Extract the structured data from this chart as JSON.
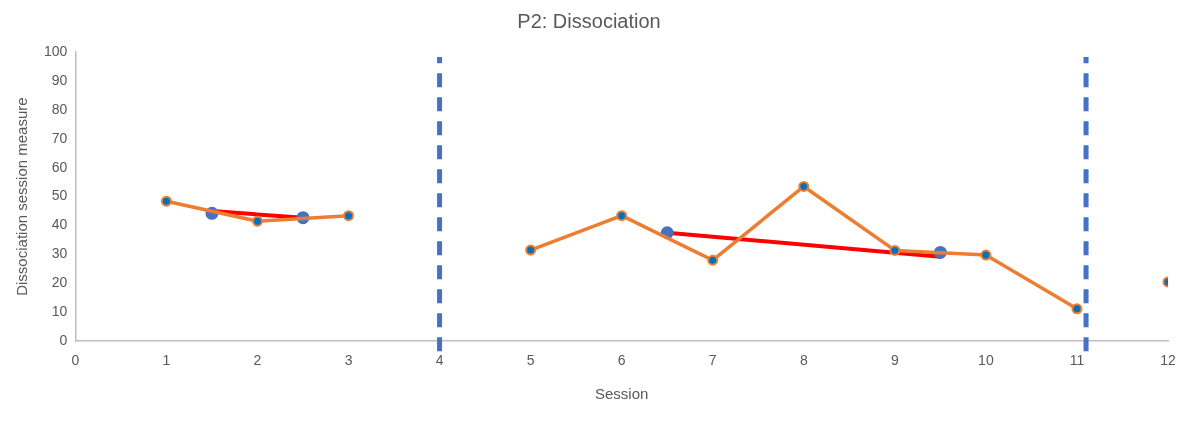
{
  "chart_data": {
    "type": "line",
    "title": "P2: Dissociation",
    "xlabel": "Session",
    "ylabel": "Dissociation session measure",
    "xlim": [
      0,
      12
    ],
    "xticks": [
      0,
      1,
      2,
      3,
      4,
      5,
      6,
      7,
      8,
      9,
      10,
      11,
      12
    ],
    "ylim": [
      0,
      100
    ],
    "yticks": [
      0,
      10,
      20,
      30,
      40,
      50,
      60,
      70,
      80,
      90,
      100
    ],
    "grid": false,
    "legend": false,
    "marker": "circle",
    "series": [
      {
        "type": "line",
        "color": "#ed7d31",
        "x": [
          1,
          2,
          3,
          4,
          5,
          6,
          7,
          8,
          9,
          10,
          11
        ],
        "values": [
          48.4,
          41.5,
          43.4,
          null,
          31.5,
          43.4,
          28,
          53.5,
          31.4,
          29.8,
          11.2
        ]
      },
      {
        "type": "scatter",
        "color": "#ed7d31",
        "x": [
          12
        ],
        "values": [
          20.5
        ]
      },
      {
        "type": "scatter",
        "color": "#4472c4",
        "x": [
          1.5,
          2.5,
          6.5,
          9.5
        ],
        "values": [
          44.2,
          42.7,
          37.5,
          30.7
        ]
      },
      {
        "type": "line",
        "color": "#ff0000",
        "marker": "none",
        "x": [
          1.5,
          2.5,
          4,
          6.5,
          9.5
        ],
        "values": [
          45,
          42.7,
          null,
          37.5,
          29.2
        ]
      }
    ],
    "ref_lines": [
      {
        "axis": "x",
        "value": 4,
        "color": "#4472c4",
        "line_style": "dashed"
      },
      {
        "axis": "x",
        "value": 11.1,
        "color": "#4472c4",
        "line_style": "dashed"
      }
    ]
  }
}
